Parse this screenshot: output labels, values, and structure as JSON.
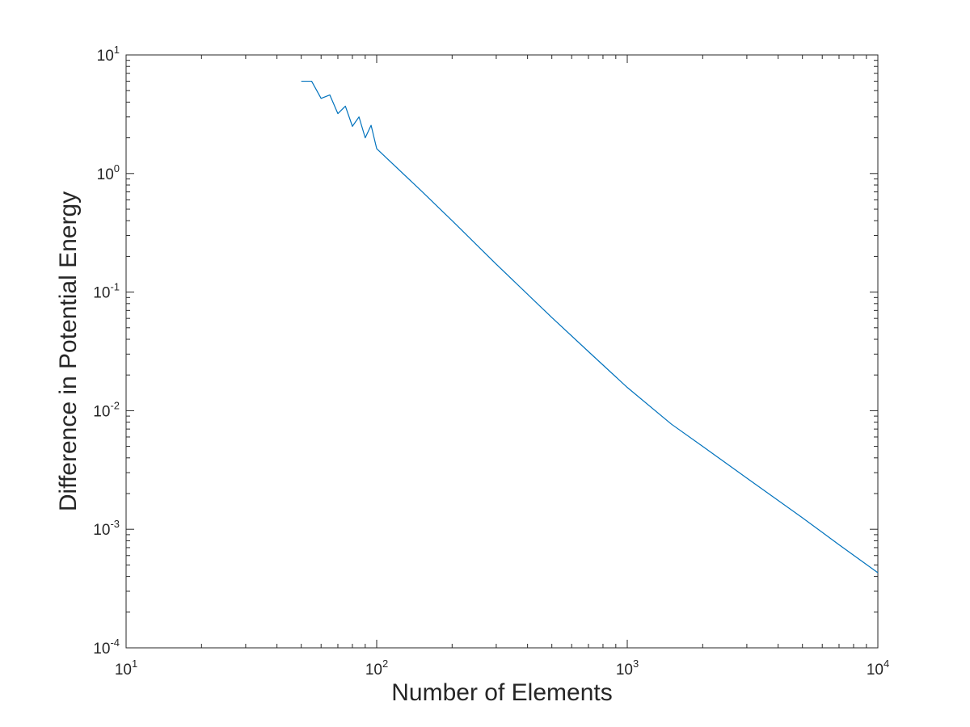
{
  "chart_data": {
    "type": "line",
    "title": "",
    "xlabel": "Number of Elements",
    "ylabel": "Difference in Potential Energy",
    "x_scale": "log",
    "y_scale": "log",
    "xlim": [
      10,
      10000
    ],
    "ylim": [
      0.0001,
      10
    ],
    "grid": false,
    "box": true,
    "x_ticks": [
      {
        "value": 10,
        "base": "10",
        "exp": "1"
      },
      {
        "value": 100,
        "base": "10",
        "exp": "2"
      },
      {
        "value": 1000,
        "base": "10",
        "exp": "3"
      },
      {
        "value": 10000,
        "base": "10",
        "exp": "4"
      }
    ],
    "y_ticks": [
      {
        "value": 0.0001,
        "base": "10",
        "exp": "-4"
      },
      {
        "value": 0.001,
        "base": "10",
        "exp": "-3"
      },
      {
        "value": 0.01,
        "base": "10",
        "exp": "-2"
      },
      {
        "value": 0.1,
        "base": "10",
        "exp": "-1"
      },
      {
        "value": 1,
        "base": "10",
        "exp": "0"
      },
      {
        "value": 10,
        "base": "10",
        "exp": "1"
      }
    ],
    "series": [
      {
        "color": "#0072BD",
        "x": [
          50,
          55,
          60,
          65,
          70,
          75,
          80,
          85,
          90,
          95,
          100,
          150,
          200,
          300,
          500,
          700,
          1000,
          1500,
          2000,
          3000,
          5000,
          7000,
          10000
        ],
        "y": [
          6.0,
          6.0,
          4.3,
          4.6,
          3.2,
          3.7,
          2.5,
          3.0,
          2.0,
          2.55,
          1.62,
          0.72,
          0.4,
          0.172,
          0.061,
          0.0315,
          0.0157,
          0.0077,
          0.005,
          0.0027,
          0.00125,
          0.00074,
          0.00043
        ]
      }
    ]
  }
}
